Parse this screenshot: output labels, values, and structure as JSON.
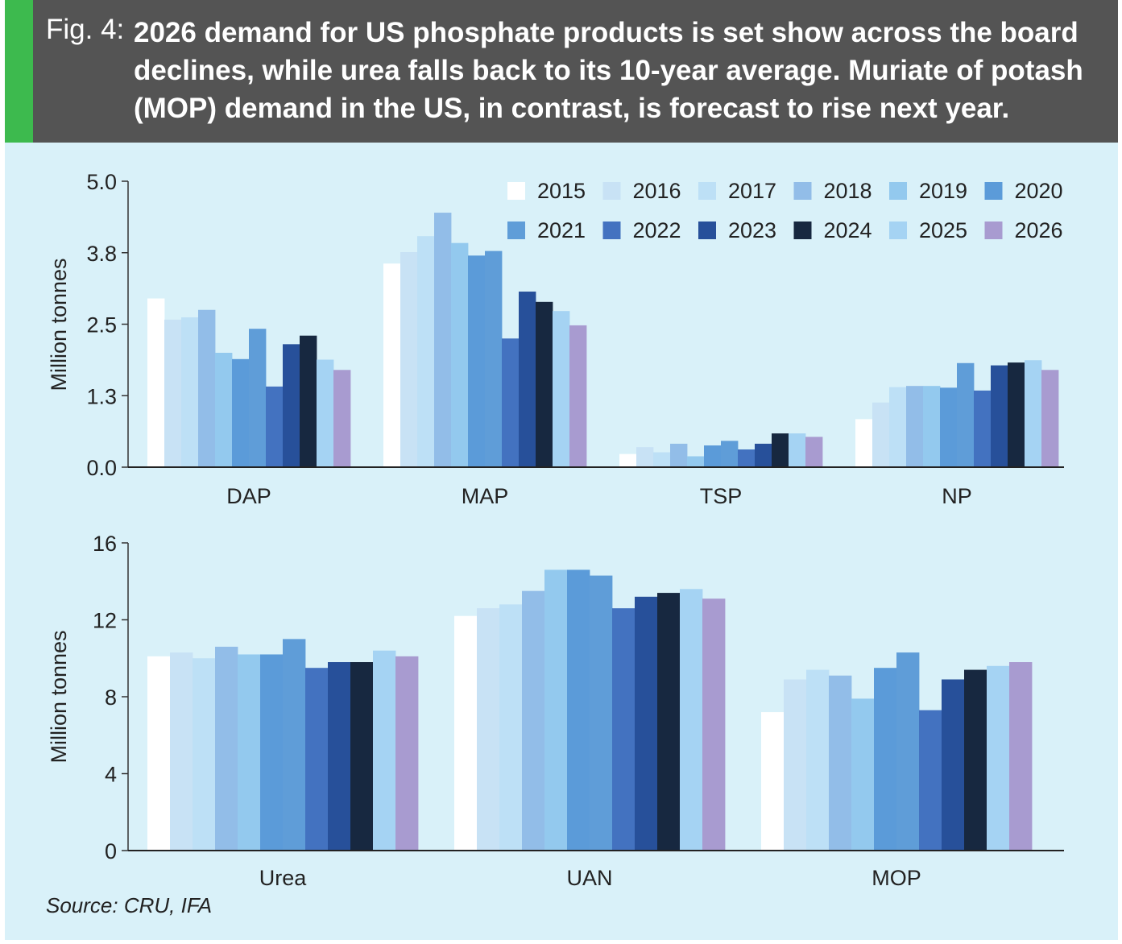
{
  "header": {
    "fig_label": "Fig. 4:",
    "title": "2026 demand for US phosphate products is set show across the board declines, while urea falls back to its 10-year average. Muriate of potash (MOP) demand in the US, in contrast, is forecast to rise next year.",
    "background_color": "#545454",
    "accent_color": "#3dba4e"
  },
  "panel": {
    "background_color": "#d9f1f9"
  },
  "legend": {
    "entries": [
      {
        "label": "2015",
        "color": "#ffffff"
      },
      {
        "label": "2016",
        "color": "#c8e2f5"
      },
      {
        "label": "2017",
        "color": "#bde0f6"
      },
      {
        "label": "2018",
        "color": "#92bde8"
      },
      {
        "label": "2019",
        "color": "#93c9ee"
      },
      {
        "label": "2020",
        "color": "#5b9bd9"
      },
      {
        "label": "2021",
        "color": "#5f9dd8"
      },
      {
        "label": "2022",
        "color": "#4372c0"
      },
      {
        "label": "2023",
        "color": "#27509a"
      },
      {
        "label": "2024",
        "color": "#172840"
      },
      {
        "label": "2025",
        "color": "#a5d3f3"
      },
      {
        "label": "2026",
        "color": "#a89bd0"
      }
    ]
  },
  "chart_data": [
    {
      "type": "bar",
      "ylabel": "Million tonnes",
      "ylim": [
        0,
        5
      ],
      "yticks": [
        "0.0",
        "1.3",
        "2.5",
        "3.8",
        "5.0"
      ],
      "categories": [
        "DAP",
        "MAP",
        "TSP",
        "NP"
      ],
      "legend_position": "top-right",
      "series": [
        {
          "name": "2015",
          "values": [
            2.95,
            3.56,
            0.23,
            0.84
          ]
        },
        {
          "name": "2016",
          "values": [
            2.58,
            3.76,
            0.35,
            1.13
          ]
        },
        {
          "name": "2017",
          "values": [
            2.62,
            4.04,
            0.26,
            1.4
          ]
        },
        {
          "name": "2018",
          "values": [
            2.75,
            4.45,
            0.41,
            1.42
          ]
        },
        {
          "name": "2019",
          "values": [
            2.0,
            3.92,
            0.19,
            1.42
          ]
        },
        {
          "name": "2020",
          "values": [
            1.89,
            3.7,
            0.38,
            1.39
          ]
        },
        {
          "name": "2021",
          "values": [
            2.42,
            3.78,
            0.46,
            1.82
          ]
        },
        {
          "name": "2022",
          "values": [
            1.41,
            2.25,
            0.31,
            1.34
          ]
        },
        {
          "name": "2023",
          "values": [
            2.15,
            3.07,
            0.41,
            1.78
          ]
        },
        {
          "name": "2024",
          "values": [
            2.3,
            2.89,
            0.59,
            1.83
          ]
        },
        {
          "name": "2025",
          "values": [
            1.88,
            2.73,
            0.59,
            1.87
          ]
        },
        {
          "name": "2026",
          "values": [
            1.7,
            2.48,
            0.53,
            1.7
          ]
        }
      ]
    },
    {
      "type": "bar",
      "ylabel": "Million tonnes",
      "ylim": [
        0,
        16
      ],
      "yticks": [
        "0",
        "4",
        "8",
        "12",
        "16"
      ],
      "categories": [
        "Urea",
        "UAN",
        "MOP"
      ],
      "series": [
        {
          "name": "2015",
          "values": [
            10.1,
            12.2,
            7.2
          ]
        },
        {
          "name": "2016",
          "values": [
            10.3,
            12.6,
            8.9
          ]
        },
        {
          "name": "2017",
          "values": [
            10.0,
            12.8,
            9.4
          ]
        },
        {
          "name": "2018",
          "values": [
            10.6,
            13.5,
            9.1
          ]
        },
        {
          "name": "2019",
          "values": [
            10.2,
            14.6,
            7.9
          ]
        },
        {
          "name": "2020",
          "values": [
            10.2,
            14.6,
            9.5
          ]
        },
        {
          "name": "2021",
          "values": [
            11.0,
            14.3,
            10.3
          ]
        },
        {
          "name": "2022",
          "values": [
            9.5,
            12.6,
            7.3
          ]
        },
        {
          "name": "2023",
          "values": [
            9.8,
            13.2,
            8.9
          ]
        },
        {
          "name": "2024",
          "values": [
            9.8,
            13.4,
            9.4
          ]
        },
        {
          "name": "2025",
          "values": [
            10.4,
            13.6,
            9.6
          ]
        },
        {
          "name": "2026",
          "values": [
            10.1,
            13.1,
            9.8
          ]
        }
      ]
    }
  ],
  "source": "Source: CRU, IFA"
}
